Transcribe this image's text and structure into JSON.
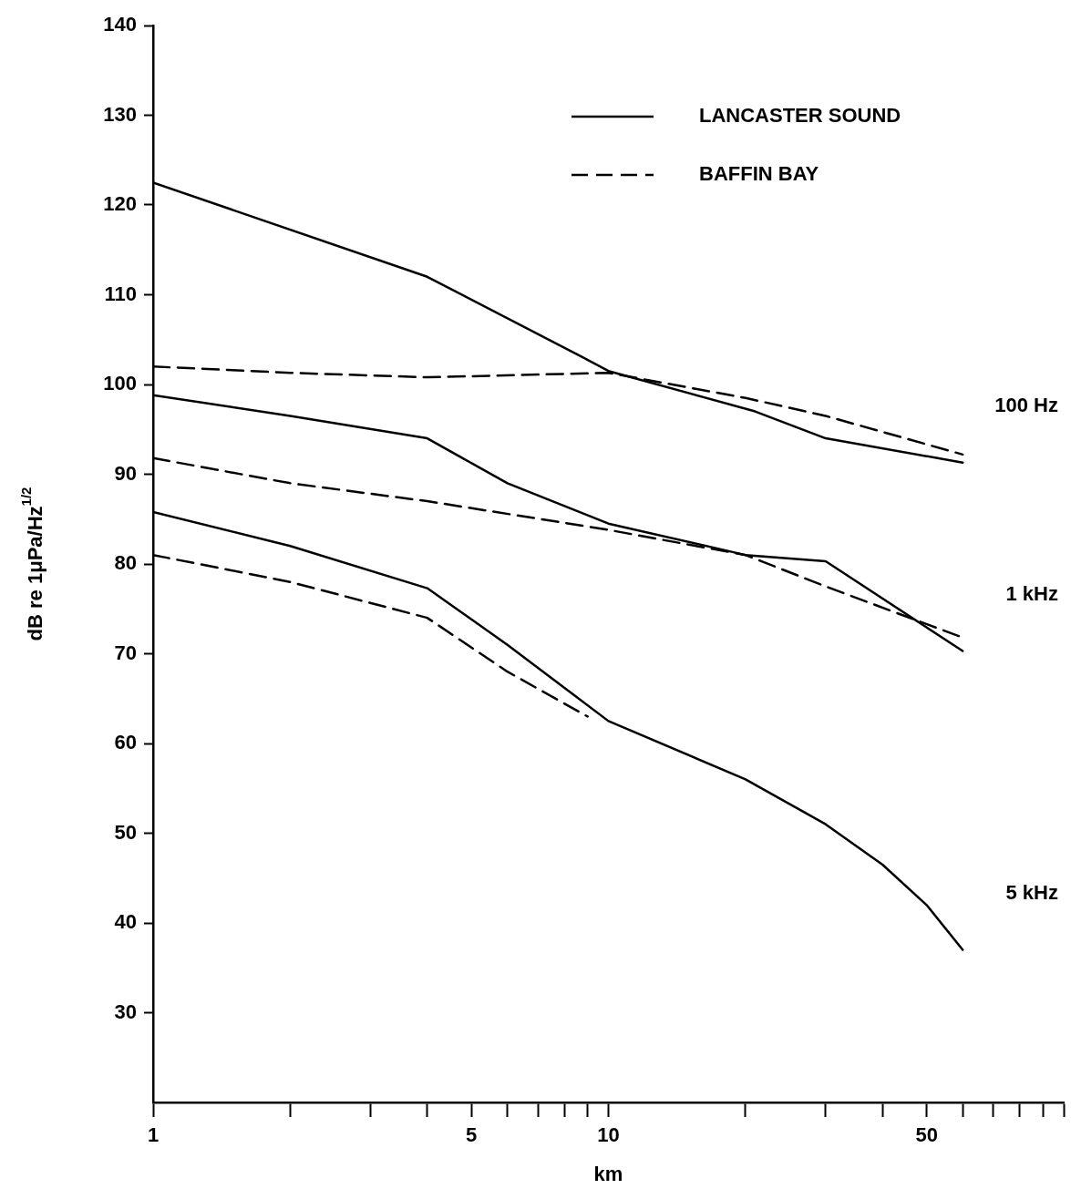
{
  "chart_data": {
    "type": "line",
    "xlabel": "km",
    "ylabel": "dB re 1μPa/Hz$^{1/2}$",
    "log": "x",
    "xlim": [
      1,
      100
    ],
    "xticks": [
      {
        "value": 1,
        "label": "1"
      },
      {
        "value": 2,
        "label": null
      },
      {
        "value": 3,
        "label": null
      },
      {
        "value": 4,
        "label": null
      },
      {
        "value": 5,
        "label": "5"
      },
      {
        "value": 6,
        "label": null
      },
      {
        "value": 7,
        "label": null
      },
      {
        "value": 8,
        "label": null
      },
      {
        "value": 9,
        "label": null
      },
      {
        "value": 10,
        "label": "10"
      },
      {
        "value": 20,
        "label": null
      },
      {
        "value": 30,
        "label": null
      },
      {
        "value": 40,
        "label": null
      },
      {
        "value": 50,
        "label": "50"
      },
      {
        "value": 60,
        "label": null
      },
      {
        "value": 70,
        "label": null
      },
      {
        "value": 80,
        "label": null
      },
      {
        "value": 90,
        "label": null
      },
      {
        "value": 100,
        "label": null
      }
    ],
    "ylim": [
      20,
      140
    ],
    "yticks": [
      30,
      40,
      50,
      60,
      70,
      80,
      90,
      100,
      110,
      120,
      130,
      140
    ],
    "grid": false,
    "legend": "top right",
    "marker": "none",
    "series": [
      {
        "name": "LANCASTER SOUND",
        "color": "#000000",
        "line_style": "solid",
        "x": [
          1,
          4,
          8.8,
          10,
          21,
          30,
          60
        ],
        "values": [
          122.5,
          112,
          103,
          101.5,
          97,
          94,
          91.3
        ]
      },
      {
        "name": "BAFFIN BAY",
        "color": "#000000",
        "line_style": "dashed",
        "x": [
          1,
          2,
          4,
          10,
          20,
          30,
          60
        ],
        "values": [
          102,
          101.3,
          100.8,
          101.3,
          98.5,
          96.5,
          92.2
        ]
      },
      {
        "color": "#000000",
        "line_style": "solid",
        "x": [
          1,
          2,
          4,
          6,
          10,
          20,
          30,
          60
        ],
        "values": [
          98.8,
          96.5,
          94,
          89,
          84.5,
          81,
          80.3,
          70.3
        ]
      },
      {
        "color": "#000000",
        "line_style": "dashed",
        "x": [
          1,
          2,
          4,
          10,
          20,
          30,
          60
        ],
        "values": [
          91.8,
          89,
          87,
          83.8,
          81,
          77.5,
          71.8
        ]
      },
      {
        "color": "#000000",
        "line_style": "solid",
        "x": [
          1,
          2,
          4,
          6,
          10,
          20,
          30,
          40,
          50,
          60
        ],
        "values": [
          85.8,
          82,
          77.3,
          71,
          62.5,
          56,
          51,
          46.5,
          42,
          37
        ]
      },
      {
        "color": "#000000",
        "line_style": "dashed",
        "x": [
          1,
          2,
          4,
          6,
          9
        ],
        "values": [
          81,
          78,
          74,
          68,
          63
        ]
      }
    ],
    "annotations": [
      "100 Hz",
      "1 kHz",
      "5 kHz"
    ]
  }
}
